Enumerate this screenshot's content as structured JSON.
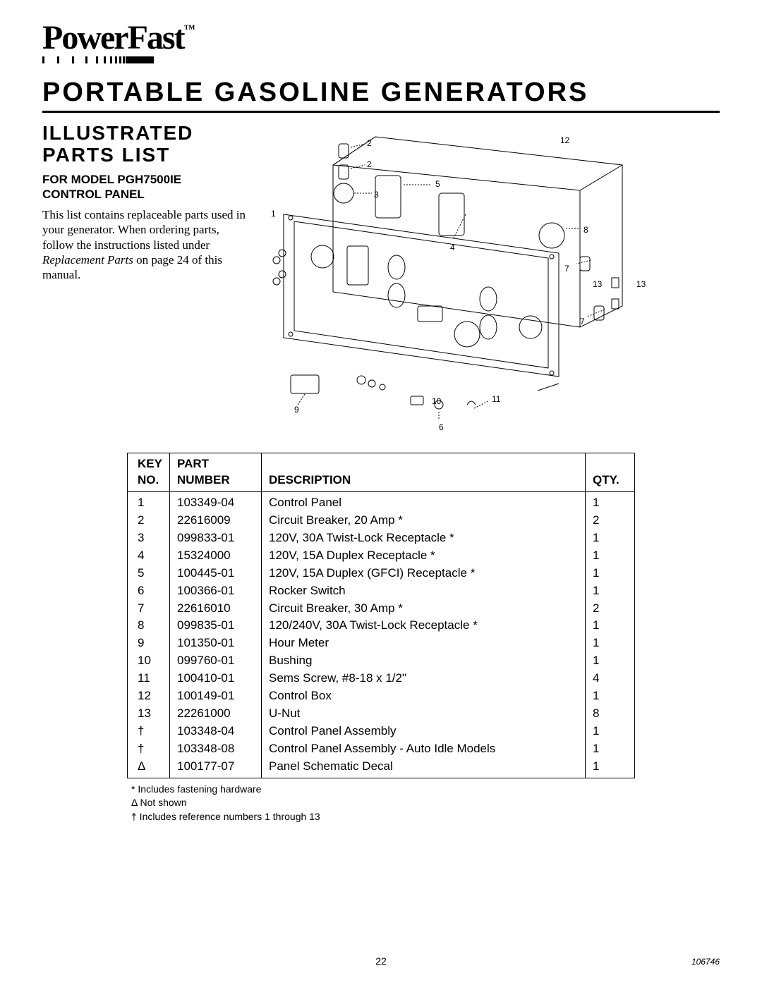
{
  "brand": {
    "name": "PowerFast",
    "tm": "™"
  },
  "headings": {
    "main": "PORTABLE GASOLINE GENERATORS",
    "sub1": "ILLUSTRATED",
    "sub2": "PARTS LIST",
    "model_line1": "FOR MODEL PGH7500IE",
    "model_line2": "CONTROL PANEL"
  },
  "paragraph": {
    "l1": "This list contains replaceable parts used in your generator. When ordering parts, follow the instructions listed under ",
    "em": "Replacement Parts",
    "l2": " on page 24 of this manual."
  },
  "diagram": {
    "callouts": [
      "1",
      "2",
      "2",
      "3",
      "4",
      "5",
      "6",
      "7",
      "7",
      "8",
      "9",
      "10",
      "11",
      "12",
      "13",
      "13"
    ]
  },
  "table": {
    "columns": {
      "key_l1": "KEY",
      "key_l2": "NO.",
      "part_l1": "PART",
      "part_l2": "NUMBER",
      "desc": "DESCRIPTION",
      "qty": "QTY."
    },
    "rows": [
      {
        "key": "1",
        "part": "103349-04",
        "desc": "Control Panel",
        "qty": "1"
      },
      {
        "key": "2",
        "part": "22616009",
        "desc": "Circuit Breaker, 20 Amp *",
        "qty": "2"
      },
      {
        "key": "3",
        "part": "099833-01",
        "desc": "120V, 30A Twist-Lock Receptacle *",
        "qty": "1"
      },
      {
        "key": "4",
        "part": "15324000",
        "desc": "120V, 15A Duplex Receptacle *",
        "qty": "1"
      },
      {
        "key": "5",
        "part": "100445-01",
        "desc": "120V, 15A Duplex (GFCI) Receptacle *",
        "qty": "1"
      },
      {
        "key": "6",
        "part": "100366-01",
        "desc": "Rocker Switch",
        "qty": "1"
      },
      {
        "key": "7",
        "part": "22616010",
        "desc": "Circuit Breaker, 30 Amp *",
        "qty": "2"
      },
      {
        "key": "8",
        "part": "099835-01",
        "desc": "120/240V, 30A Twist-Lock Receptacle *",
        "qty": "1"
      },
      {
        "key": "9",
        "part": "101350-01",
        "desc": "Hour Meter",
        "qty": "1"
      },
      {
        "key": "10",
        "part": "099760-01",
        "desc": "Bushing",
        "qty": "1"
      },
      {
        "key": "11",
        "part": "100410-01",
        "desc": "Sems Screw, #8-18 x 1/2\"",
        "qty": "4"
      },
      {
        "key": "12",
        "part": "100149-01",
        "desc": "Control Box",
        "qty": "1"
      },
      {
        "key": "13",
        "part": "22261000",
        "desc": "U-Nut",
        "qty": "8"
      },
      {
        "key": "†",
        "part": "103348-04",
        "desc": "Control Panel Assembly",
        "qty": "1"
      },
      {
        "key": "†",
        "part": "103348-08",
        "desc": "Control Panel Assembly - Auto Idle Models",
        "qty": "1"
      },
      {
        "key": "Δ",
        "part": "100177-07",
        "desc": "Panel Schematic Decal",
        "qty": "1"
      }
    ]
  },
  "footnotes": {
    "f1": "*  Includes fastening hardware",
    "f2": "Δ Not shown",
    "f3": "† Includes reference numbers 1 through 13"
  },
  "footer": {
    "page": "22",
    "docid": "106746"
  },
  "colors": {
    "text": "#000000",
    "background": "#ffffff",
    "rule": "#000000"
  }
}
